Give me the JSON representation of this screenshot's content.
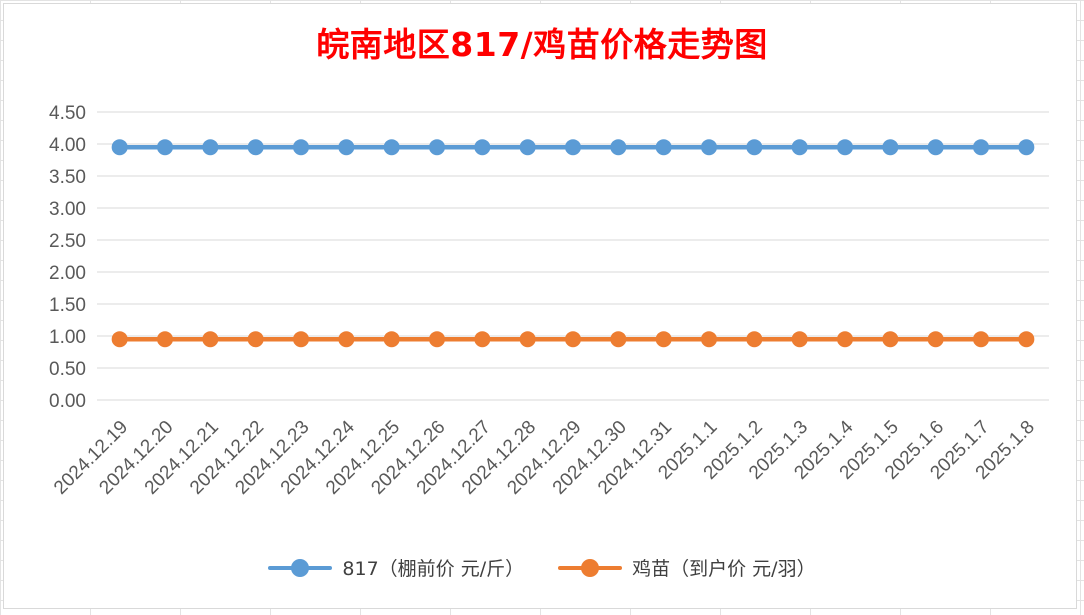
{
  "chart_data": {
    "type": "line",
    "title": "皖南地区817/鸡苗价格走势图",
    "xlabel": "",
    "ylabel": "",
    "categories": [
      "2024.12.19",
      "2024.12.20",
      "2024.12.21",
      "2024.12.22",
      "2024.12.23",
      "2024.12.24",
      "2024.12.25",
      "2024.12.26",
      "2024.12.27",
      "2024.12.28",
      "2024.12.29",
      "2024.12.30",
      "2024.12.31",
      "2025.1.1",
      "2025.1.2",
      "2025.1.3",
      "2025.1.4",
      "2025.1.5",
      "2025.1.6",
      "2025.1.7",
      "2025.1.8"
    ],
    "series": [
      {
        "name": "817（棚前价 元/斤）",
        "color": "#5b9bd5",
        "values": [
          3.95,
          3.95,
          3.95,
          3.95,
          3.95,
          3.95,
          3.95,
          3.95,
          3.95,
          3.95,
          3.95,
          3.95,
          3.95,
          3.95,
          3.95,
          3.95,
          3.95,
          3.95,
          3.95,
          3.95,
          3.95
        ]
      },
      {
        "name": "鸡苗（到户价 元/羽）",
        "color": "#ed7d31",
        "values": [
          0.95,
          0.95,
          0.95,
          0.95,
          0.95,
          0.95,
          0.95,
          0.95,
          0.95,
          0.95,
          0.95,
          0.95,
          0.95,
          0.95,
          0.95,
          0.95,
          0.95,
          0.95,
          0.95,
          0.95,
          0.95
        ]
      }
    ],
    "y_ticks": [
      "0.00",
      "0.50",
      "1.00",
      "1.50",
      "2.00",
      "2.50",
      "3.00",
      "3.50",
      "4.00",
      "4.50"
    ],
    "ylim": [
      0,
      4.5
    ],
    "grid": true,
    "legend_position": "bottom"
  }
}
